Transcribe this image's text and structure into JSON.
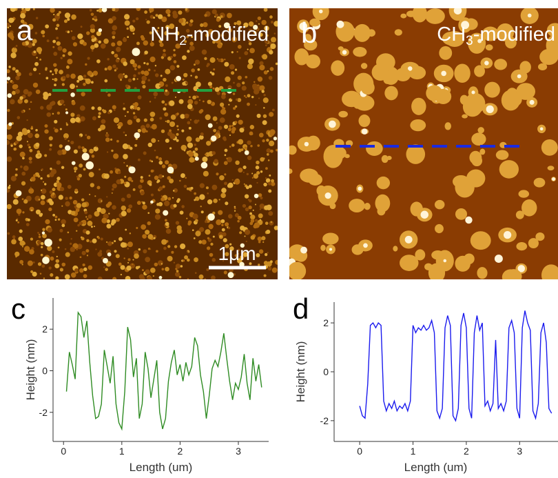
{
  "panels": {
    "a": {
      "label": "a",
      "caption": [
        "NH",
        "2",
        "-modified"
      ],
      "scale_bar": "1μm"
    },
    "b": {
      "label": "b",
      "caption": [
        "CH",
        "3",
        "-modified"
      ]
    }
  },
  "chart_data": [
    {
      "type": "line",
      "panel_label": "c",
      "x_label": "Length (um)",
      "y_label": "Height (nm)",
      "color": "#2e8b22",
      "x": [
        0.05,
        0.1,
        0.15,
        0.2,
        0.25,
        0.3,
        0.35,
        0.4,
        0.45,
        0.5,
        0.55,
        0.6,
        0.65,
        0.7,
        0.75,
        0.8,
        0.85,
        0.9,
        0.95,
        1.0,
        1.05,
        1.1,
        1.15,
        1.2,
        1.25,
        1.3,
        1.35,
        1.4,
        1.45,
        1.5,
        1.55,
        1.6,
        1.65,
        1.7,
        1.75,
        1.8,
        1.85,
        1.9,
        1.95,
        2.0,
        2.05,
        2.1,
        2.15,
        2.2,
        2.25,
        2.3,
        2.35,
        2.4,
        2.45,
        2.5,
        2.55,
        2.6,
        2.65,
        2.7,
        2.75,
        2.8,
        2.85,
        2.9,
        2.95,
        3.0,
        3.05,
        3.1,
        3.15,
        3.2,
        3.25,
        3.3,
        3.35,
        3.4
      ],
      "values": [
        -1.0,
        0.9,
        0.3,
        -0.4,
        2.8,
        2.6,
        1.6,
        2.4,
        0.4,
        -1.2,
        -2.3,
        -2.2,
        -1.6,
        1.0,
        0.2,
        -0.6,
        0.7,
        -1.6,
        -2.5,
        -2.8,
        -1.0,
        2.1,
        1.5,
        -0.3,
        0.6,
        -2.3,
        -1.6,
        0.9,
        0.1,
        -1.3,
        -0.4,
        0.5,
        -2.0,
        -2.8,
        -2.3,
        -0.5,
        0.4,
        1.0,
        -0.2,
        0.3,
        -0.5,
        0.4,
        -0.2,
        0.2,
        1.6,
        1.2,
        -0.2,
        -1.0,
        -2.3,
        -1.2,
        0.1,
        0.5,
        0.2,
        0.9,
        1.8,
        0.6,
        -0.5,
        -1.4,
        -0.6,
        -0.9,
        -0.3,
        0.8,
        -0.6,
        -1.4,
        0.6,
        -0.5,
        0.3,
        -0.8
      ],
      "xlim": [
        -0.18,
        3.52
      ],
      "ylim": [
        -3.4,
        3.5
      ],
      "xticks": [
        0,
        1,
        2,
        3
      ],
      "yticks": [
        -2,
        0,
        2
      ]
    },
    {
      "type": "line",
      "panel_label": "d",
      "x_label": "Length (um)",
      "y_label": "Height (nm)",
      "color": "#1a1aee",
      "x": [
        0.0,
        0.05,
        0.1,
        0.15,
        0.2,
        0.25,
        0.3,
        0.35,
        0.4,
        0.45,
        0.5,
        0.55,
        0.6,
        0.65,
        0.7,
        0.75,
        0.8,
        0.85,
        0.9,
        0.95,
        1.0,
        1.05,
        1.1,
        1.15,
        1.2,
        1.25,
        1.3,
        1.35,
        1.4,
        1.45,
        1.5,
        1.55,
        1.6,
        1.65,
        1.7,
        1.75,
        1.8,
        1.85,
        1.9,
        1.95,
        2.0,
        2.05,
        2.1,
        2.15,
        2.2,
        2.25,
        2.3,
        2.35,
        2.4,
        2.45,
        2.5,
        2.55,
        2.6,
        2.65,
        2.7,
        2.75,
        2.8,
        2.85,
        2.9,
        2.95,
        3.0,
        3.05,
        3.1,
        3.15,
        3.2,
        3.25,
        3.3,
        3.35,
        3.4,
        3.45,
        3.5,
        3.55,
        3.6
      ],
      "values": [
        -1.4,
        -1.8,
        -1.9,
        -0.5,
        1.9,
        2.0,
        1.8,
        2.0,
        1.9,
        -1.2,
        -1.6,
        -1.3,
        -1.5,
        -1.2,
        -1.6,
        -1.4,
        -1.5,
        -1.3,
        -1.6,
        -1.2,
        1.9,
        1.6,
        1.8,
        1.7,
        1.9,
        1.7,
        1.8,
        2.1,
        1.6,
        -1.6,
        -1.9,
        -1.5,
        1.8,
        2.3,
        1.9,
        -1.8,
        -2.0,
        -1.5,
        1.9,
        2.4,
        1.8,
        -1.5,
        -1.9,
        1.6,
        2.3,
        1.7,
        2.0,
        -1.4,
        -1.2,
        -1.6,
        -1.3,
        1.3,
        -1.5,
        -1.3,
        -1.6,
        -1.2,
        1.8,
        2.1,
        1.6,
        -1.5,
        -1.9,
        1.8,
        2.5,
        2.0,
        1.7,
        -1.6,
        -1.9,
        -1.3,
        1.6,
        2.0,
        1.2,
        -1.5,
        -1.7
      ],
      "xlim": [
        -0.48,
        3.72
      ],
      "ylim": [
        -2.85,
        2.85
      ],
      "xticks": [
        0,
        1,
        2,
        3
      ],
      "yticks": [
        -2,
        0,
        2
      ]
    }
  ]
}
